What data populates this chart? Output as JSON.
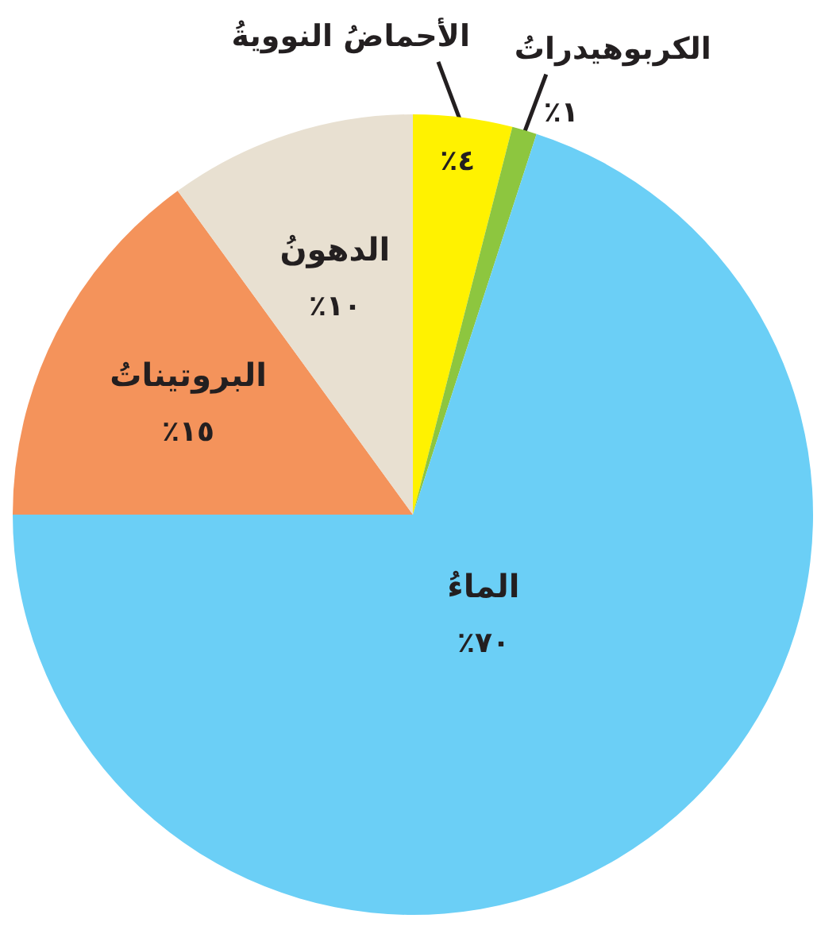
{
  "chart_data": {
    "type": "pie",
    "categories": [
      "الأحماضُ النوويةُ",
      "الكربوهيدراتُ",
      "الماءُ",
      "البروتيناتُ",
      "الدهونُ"
    ],
    "values": [
      4,
      1,
      70,
      15,
      10
    ],
    "colors": [
      "#fff200",
      "#8dc63f",
      "#6bcff6",
      "#f4935b",
      "#e8e0d1"
    ],
    "value_labels": [
      "٤٪",
      "١٪",
      "٧٠٪",
      "١٥٪",
      "١٠٪"
    ]
  }
}
